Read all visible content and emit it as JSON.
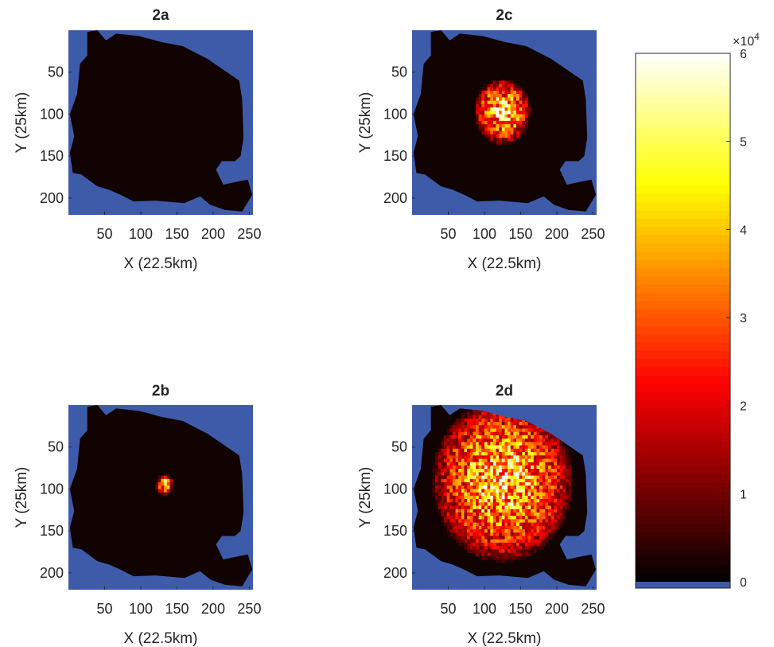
{
  "figure": {
    "colormap": "hot",
    "background_color": "#3e5baa",
    "land_dark_color": "#120303"
  },
  "chart_data": [
    {
      "type": "heatmap",
      "title": "2a",
      "xlabel": "X (22.5km)",
      "ylabel": "Y (25km)",
      "xlim": [
        0,
        255
      ],
      "ylim": [
        0,
        220
      ],
      "xticks": [
        50,
        100,
        150,
        200,
        250
      ],
      "yticks": [
        50,
        100,
        150,
        200
      ],
      "y_direction": "reverse",
      "hotspots": []
    },
    {
      "type": "heatmap",
      "title": "2b",
      "xlabel": "X (22.5km)",
      "ylabel": "Y (25km)",
      "xlim": [
        0,
        255
      ],
      "ylim": [
        0,
        220
      ],
      "xticks": [
        50,
        100,
        150,
        200,
        250
      ],
      "yticks": [
        50,
        100,
        150,
        200
      ],
      "y_direction": "reverse",
      "hotspots": [
        {
          "x": 133,
          "y": 95,
          "radius": 9,
          "peak": 60000
        }
      ]
    },
    {
      "type": "heatmap",
      "title": "2c",
      "xlabel": "X (22.5km)",
      "ylabel": "Y (25km)",
      "xlim": [
        0,
        255
      ],
      "ylim": [
        0,
        220
      ],
      "xticks": [
        50,
        100,
        150,
        200,
        250
      ],
      "yticks": [
        50,
        100,
        150,
        200
      ],
      "y_direction": "reverse",
      "hotspots": [
        {
          "x": 125,
          "y": 97,
          "radius": 30,
          "peak": 60000
        }
      ]
    },
    {
      "type": "heatmap",
      "title": "2d",
      "xlabel": "X (22.5km)",
      "ylabel": "Y (25km)",
      "xlim": [
        0,
        255
      ],
      "ylim": [
        0,
        220
      ],
      "xticks": [
        50,
        100,
        150,
        200,
        250
      ],
      "yticks": [
        50,
        100,
        150,
        200
      ],
      "y_direction": "reverse",
      "hotspots": [
        {
          "x": 125,
          "y": 90,
          "radius": 75,
          "peak": 60000
        }
      ]
    }
  ],
  "colorbar": {
    "min": 0,
    "max": 60000,
    "ticks": [
      {
        "value": 0,
        "label": "0"
      },
      {
        "value": 10000,
        "label": "1"
      },
      {
        "value": 20000,
        "label": "2"
      },
      {
        "value": 30000,
        "label": "3"
      },
      {
        "value": 40000,
        "label": "4"
      },
      {
        "value": 50000,
        "label": "5"
      },
      {
        "value": 60000,
        "label": "6"
      }
    ],
    "exponent_base": "×10",
    "exponent_power": "4"
  }
}
